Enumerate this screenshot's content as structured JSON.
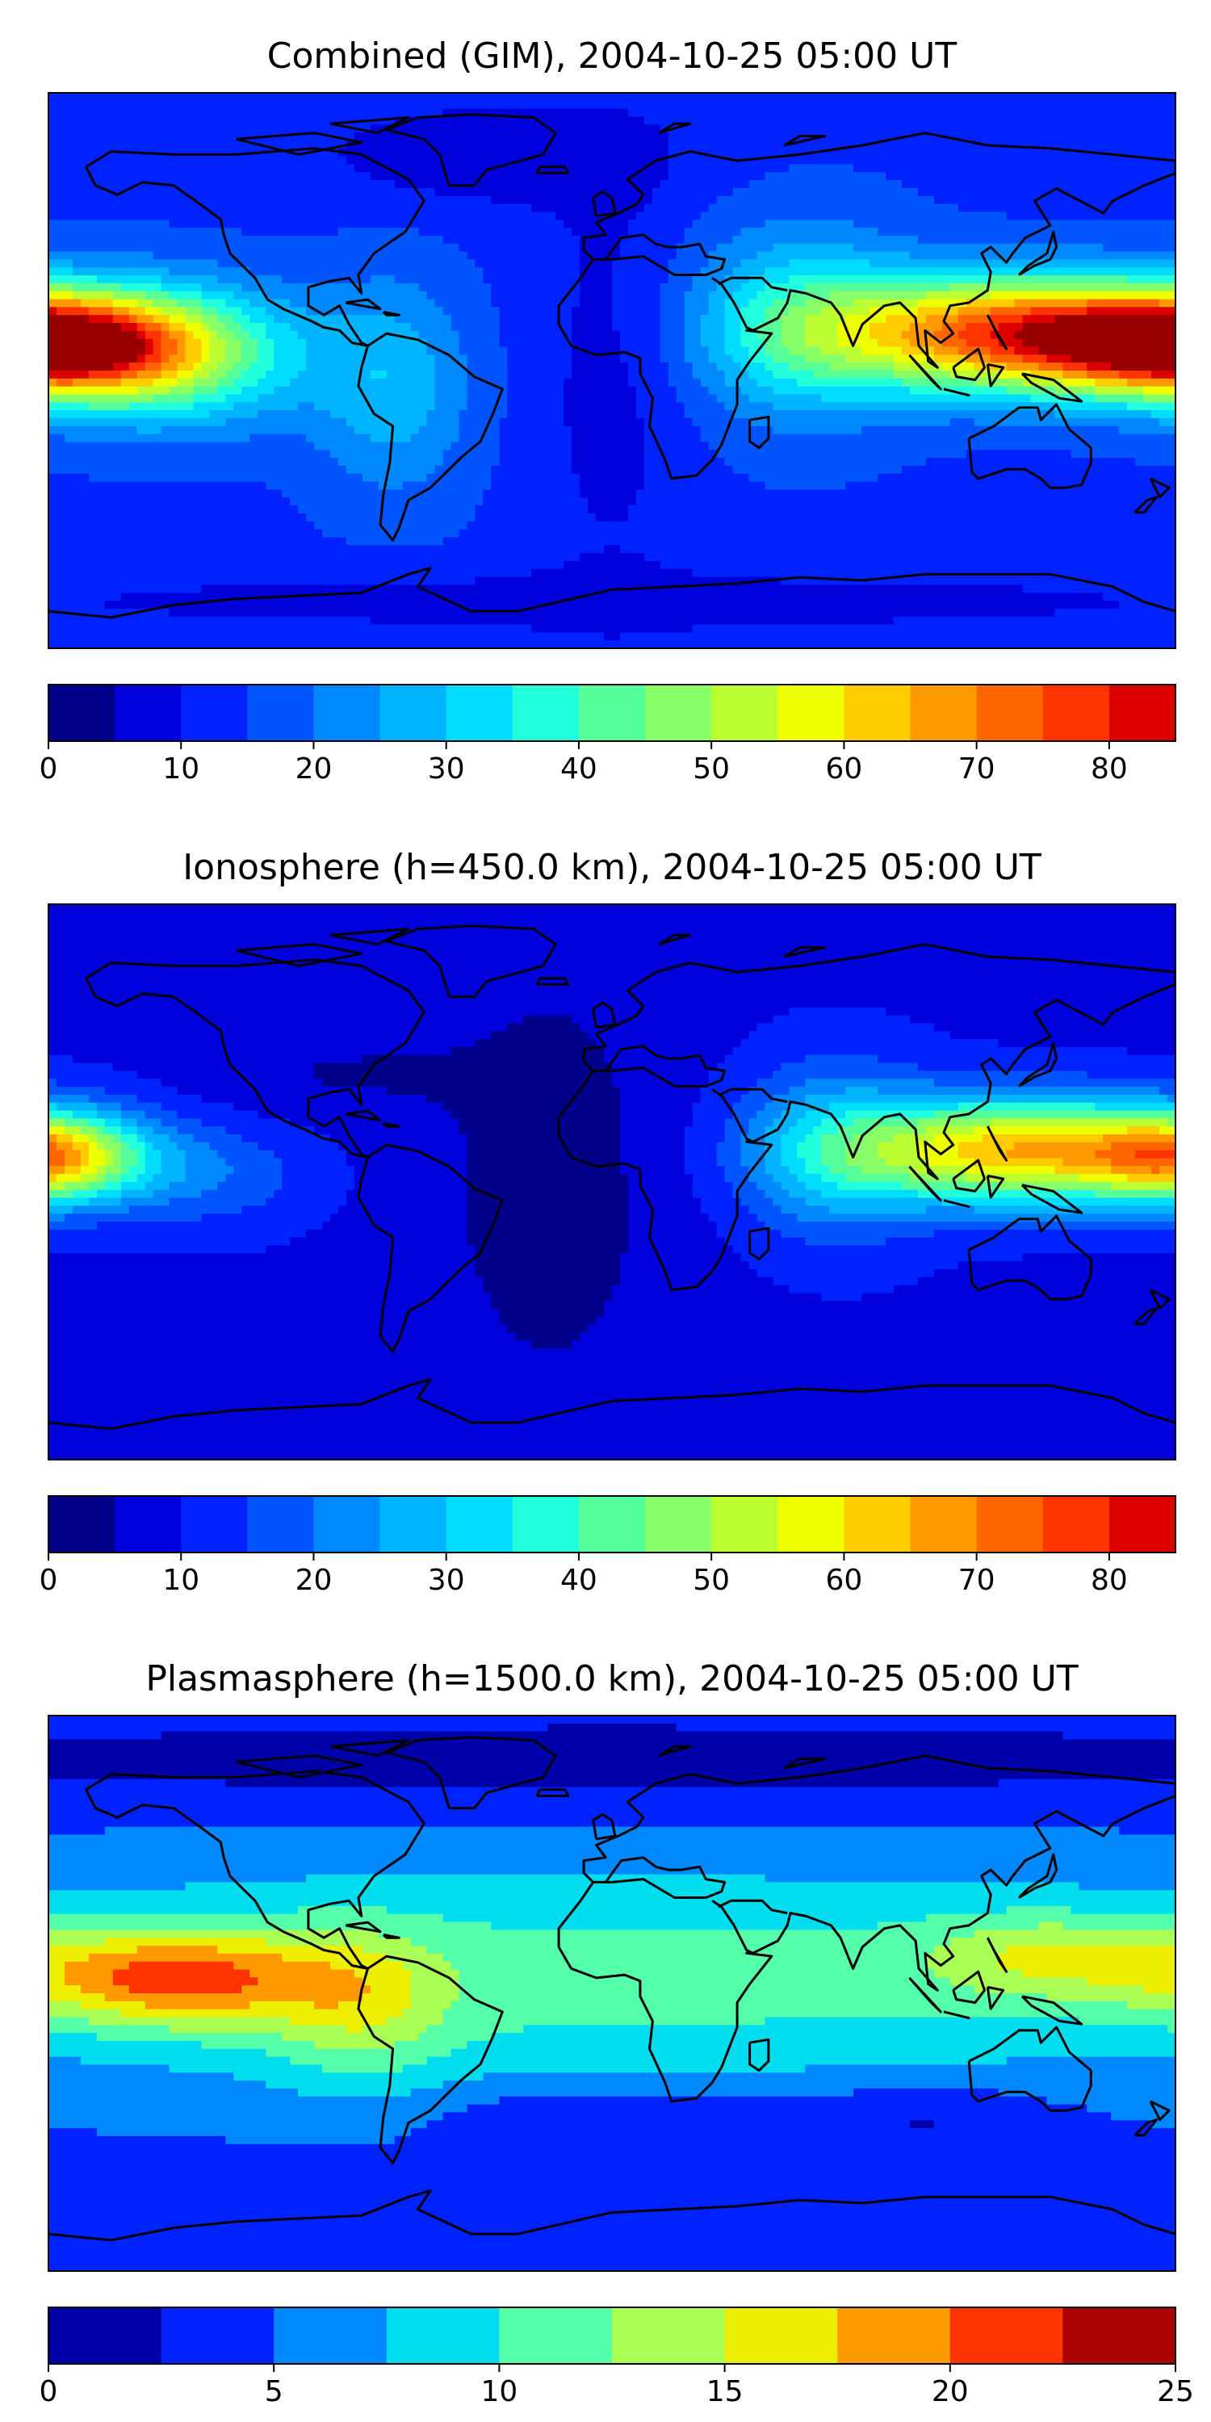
{
  "panels": [
    {
      "title": "Combined (GIM), 2004-10-25 05:00 UT",
      "colorbar": {
        "levels": [
          0,
          5,
          10,
          15,
          20,
          25,
          30,
          35,
          40,
          45,
          50,
          55,
          60,
          65,
          70,
          75,
          80,
          85
        ],
        "tick_labels": [
          "0",
          "10",
          "20",
          "30",
          "40",
          "50",
          "60",
          "70",
          "80"
        ],
        "tick_values": [
          0,
          10,
          20,
          30,
          40,
          50,
          60,
          70,
          80
        ],
        "colors": [
          "#00008b",
          "#0000dd",
          "#0022ff",
          "#0055ff",
          "#0088ff",
          "#00b4ff",
          "#00ddff",
          "#22ffdd",
          "#55ff99",
          "#88ff66",
          "#bbff33",
          "#eeff00",
          "#ffcc00",
          "#ff9900",
          "#ff6600",
          "#ff3300",
          "#dd0000",
          "#990000"
        ]
      },
      "field": {
        "background_value": 14,
        "features": [
          {
            "lon": 130,
            "lat": 12,
            "amp": 62,
            "sx": 42,
            "sy": 13
          },
          {
            "lon": 60,
            "lat": 15,
            "amp": 20,
            "sx": 25,
            "sy": 22
          },
          {
            "lon": -178,
            "lat": 8,
            "amp": 55,
            "sx": 28,
            "sy": 11
          },
          {
            "lon": -140,
            "lat": 5,
            "amp": 30,
            "sx": 30,
            "sy": 16
          },
          {
            "lon": -70,
            "lat": -5,
            "amp": 14,
            "sx": 18,
            "sy": 25
          },
          {
            "lon": 0,
            "lat": 0,
            "amp": -6,
            "sx": 18,
            "sy": 55
          },
          {
            "lon": -40,
            "lat": 70,
            "amp": -8,
            "sx": 40,
            "sy": 12
          },
          {
            "lon": 0,
            "lat": -75,
            "amp": -6,
            "sx": 180,
            "sy": 8
          }
        ]
      }
    },
    {
      "title": "Ionosphere  (h=450.0 km), 2004-10-25 05:00 UT",
      "colorbar": {
        "levels": [
          0,
          5,
          10,
          15,
          20,
          25,
          30,
          35,
          40,
          45,
          50,
          55,
          60,
          65,
          70,
          75,
          80,
          85
        ],
        "tick_labels": [
          "0",
          "10",
          "20",
          "30",
          "40",
          "50",
          "60",
          "70",
          "80"
        ],
        "tick_values": [
          0,
          10,
          20,
          30,
          40,
          50,
          60,
          70,
          80
        ],
        "colors": [
          "#00008b",
          "#0000dd",
          "#0022ff",
          "#0055ff",
          "#0088ff",
          "#00b4ff",
          "#00ddff",
          "#22ffdd",
          "#55ff99",
          "#88ff66",
          "#bbff33",
          "#eeff00",
          "#ffcc00",
          "#ff9900",
          "#ff6600",
          "#ff3300",
          "#dd0000",
          "#990000"
        ]
      },
      "field": {
        "background_value": 9,
        "features": [
          {
            "lon": 130,
            "lat": 10,
            "amp": 55,
            "sx": 38,
            "sy": 12
          },
          {
            "lon": 70,
            "lat": 10,
            "amp": 18,
            "sx": 22,
            "sy": 20
          },
          {
            "lon": -178,
            "lat": 8,
            "amp": 42,
            "sx": 20,
            "sy": 10
          },
          {
            "lon": -130,
            "lat": 2,
            "amp": 10,
            "sx": 25,
            "sy": 12
          },
          {
            "lon": -20,
            "lat": 0,
            "amp": -6,
            "sx": 30,
            "sy": 60
          },
          {
            "lon": -90,
            "lat": 35,
            "amp": -4,
            "sx": 30,
            "sy": 10
          }
        ]
      }
    },
    {
      "title": "Plasmasphere (h=1500.0 km), 2004-10-25 05:00 UT",
      "colorbar": {
        "levels": [
          0,
          2.5,
          5,
          7.5,
          10,
          12.5,
          15,
          17.5,
          20,
          22.5,
          25
        ],
        "tick_labels": [
          "0",
          "5",
          "10",
          "15",
          "20",
          "25"
        ],
        "tick_values": [
          0,
          5,
          10,
          15,
          20,
          25
        ],
        "colors": [
          "#0000aa",
          "#0022ff",
          "#0088ff",
          "#00ddee",
          "#55ffaa",
          "#aaff55",
          "#eeee00",
          "#ff9900",
          "#ff3300",
          "#aa0000"
        ]
      },
      "field": {
        "background_value": 4,
        "features": [
          {
            "lon": 0,
            "lat": 5,
            "amp": 7,
            "sx": 200,
            "sy": 28
          },
          {
            "lon": -140,
            "lat": 5,
            "amp": 12,
            "sx": 35,
            "sy": 11
          },
          {
            "lon": -80,
            "lat": -5,
            "amp": 5,
            "sx": 20,
            "sy": 18
          },
          {
            "lon": 140,
            "lat": 12,
            "amp": 6,
            "sx": 30,
            "sy": 10
          },
          {
            "lon": 0,
            "lat": 75,
            "amp": -3,
            "sx": 200,
            "sy": 10
          },
          {
            "lon": 0,
            "lat": -40,
            "amp": -3,
            "sx": 40,
            "sy": 8
          },
          {
            "lon": 100,
            "lat": -40,
            "amp": -3,
            "sx": 30,
            "sy": 8
          }
        ]
      }
    }
  ]
}
